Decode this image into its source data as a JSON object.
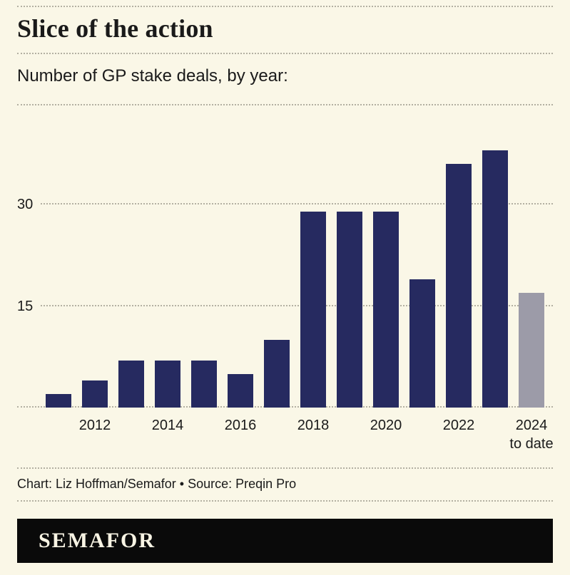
{
  "page": {
    "title": "Slice of the action",
    "subtitle": "Number of GP stake deals, by year:",
    "footer": "Chart: Liz Hoffman/Semafor • Source: Preqin Pro",
    "logo_text": "SEMAFOR"
  },
  "colors": {
    "background": "#faf7e7",
    "divider": "#b3b0a2",
    "text": "#1a1a1a",
    "bar": "#262a60",
    "bar_highlight": "#9c9ba8",
    "logo_bg": "#0a0a0a",
    "logo_text": "#f8f4e4"
  },
  "chart_data": {
    "type": "bar",
    "title": "Slice of the action",
    "subtitle": "Number of GP stake deals, by year:",
    "categories": [
      "2011",
      "2012",
      "2013",
      "2014",
      "2015",
      "2016",
      "2017",
      "2018",
      "2019",
      "2020",
      "2021",
      "2022",
      "2023",
      "2024 to date"
    ],
    "values": [
      2,
      4,
      7,
      7,
      7,
      5,
      10,
      29,
      29,
      29,
      19,
      36,
      38,
      17
    ],
    "tick_labels": [
      "",
      "2012",
      "",
      "2014",
      "",
      "2016",
      "",
      "2018",
      "",
      "2020",
      "",
      "2022",
      "",
      "2024"
    ],
    "tick_sub_labels": [
      "",
      "",
      "",
      "",
      "",
      "",
      "",
      "",
      "",
      "",
      "",
      "",
      "",
      "to date"
    ],
    "highlight_index": 13,
    "bar_color": "#262a60",
    "highlight_color": "#9c9ba8",
    "xlabel": "",
    "ylabel": "",
    "yticks": [
      15,
      30
    ],
    "ylim": [
      0,
      44
    ],
    "grid": "dotted horizontal",
    "legend": "none",
    "source": "Chart: Liz Hoffman/Semafor • Source: Preqin Pro"
  }
}
